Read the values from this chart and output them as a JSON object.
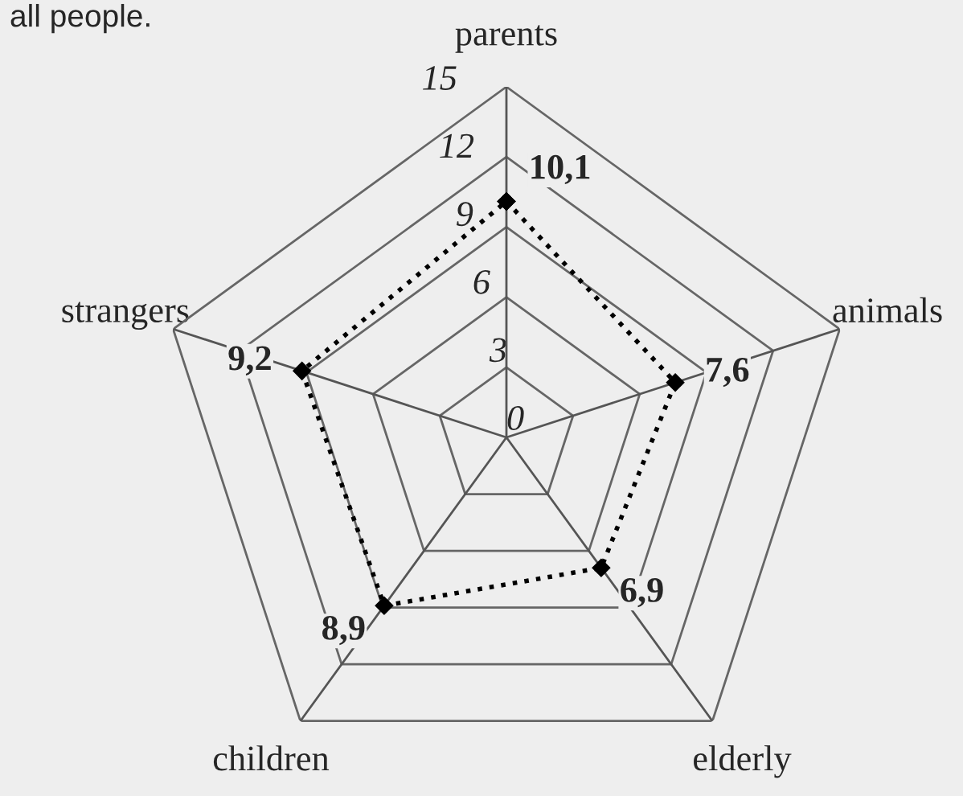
{
  "chart_data": {
    "type": "radar",
    "annotations": [
      "all people."
    ],
    "categories": [
      "parents",
      "animals",
      "elderly",
      "children",
      "strangers"
    ],
    "series": [
      {
        "color": "#000000",
        "values": [
          10.1,
          7.6,
          6.9,
          8.9,
          9.2
        ],
        "value_labels": [
          "10,1",
          "7,6",
          "6,9",
          "8,9",
          "9,2"
        ]
      }
    ],
    "ylim": [
      0,
      15
    ],
    "yticks": [
      0,
      3,
      6,
      9,
      12,
      15
    ],
    "grid": true,
    "marker": "diamond",
    "line_style": "dotted"
  }
}
